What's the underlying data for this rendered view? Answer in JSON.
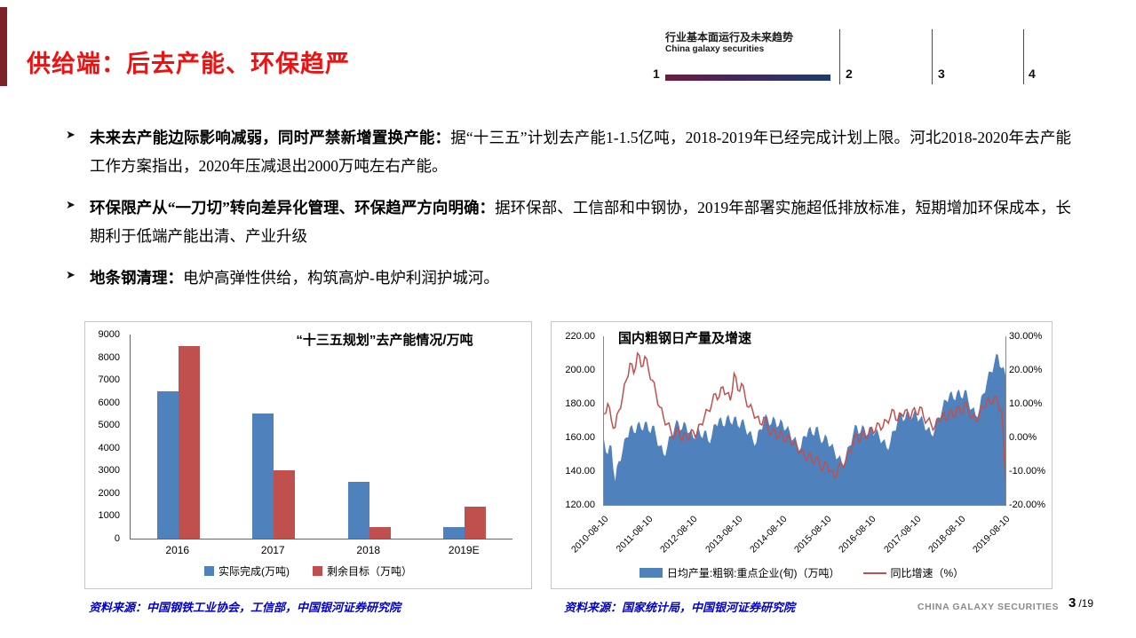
{
  "slide": {
    "title": "供给端：后去产能、环保趋严",
    "header": {
      "line1": "行业基本面运行及未来趋势",
      "line2": "China galaxy securities",
      "sections": [
        "1",
        "2",
        "3",
        "4"
      ]
    },
    "bullets": [
      {
        "lead": "未来去产能边际影响减弱，同时严禁新增置换产能：",
        "body": "据“十三五”计划去产能1-1.5亿吨，2018-2019年已经完成计划上限。河北2018-2020年去产能工作方案指出，2020年压减退出2000万吨左右产能。"
      },
      {
        "lead": "环保限产从“一刀切”转向差异化管理、环保趋严方向明确：",
        "body": "据环保部、工信部和中钢协，2019年部署实施超低排放标准，短期增加环保成本，长期利于低端产能出清、产业升级"
      },
      {
        "lead": "地条钢清理：",
        "body": "电炉高弹性供给，构筑高炉-电炉利润护城河。"
      }
    ],
    "sources": {
      "left": "资料来源：中国钢铁工业协会，工信部，中国银河证券研究院",
      "right": "资料来源：国家统计局，中国银河证券研究院"
    },
    "footer": {
      "brand": "CHINA GALAXY SECURITIES",
      "page": "3",
      "total": "/19"
    }
  },
  "chart_data": [
    {
      "type": "bar",
      "title": "“十三五规划”去产能情况/万吨",
      "categories": [
        "2016",
        "2017",
        "2018",
        "2019E"
      ],
      "series": [
        {
          "name": "实际完成(万吨)",
          "color": "#4F81BD",
          "values": [
            6500,
            5500,
            2500,
            500
          ]
        },
        {
          "name": "剩余目标（万吨）",
          "color": "#C0504D",
          "values": [
            8500,
            3000,
            500,
            1400
          ]
        }
      ],
      "ylim": [
        0,
        9000
      ],
      "y_ticks": [
        "9000",
        "8000",
        "7000",
        "6000",
        "5000",
        "4000",
        "3000",
        "2000",
        "1000",
        "0"
      ],
      "legend_position": "bottom",
      "grid": false
    },
    {
      "type": "area+line",
      "title": "国内粗钢日产量及增速",
      "x_ticks": [
        "2010-08-10",
        "2011-08-10",
        "2012-08-10",
        "2013-08-10",
        "2014-08-10",
        "2015-08-10",
        "2016-08-10",
        "2017-08-10",
        "2018-08-10",
        "2019-08-10"
      ],
      "x_tick_indices": [
        0,
        12,
        24,
        36,
        48,
        60,
        72,
        84,
        96,
        108
      ],
      "left_ylim": [
        120,
        220
      ],
      "right_ylim": [
        -20,
        30
      ],
      "left_ticks": [
        "220.00",
        "200.00",
        "180.00",
        "160.00",
        "140.00",
        "120.00"
      ],
      "right_ticks": [
        "30.00%",
        "20.00%",
        "10.00%",
        "0.00%",
        "-10.00%",
        "-20.00%"
      ],
      "legend_position": "bottom",
      "grid": false,
      "series": [
        {
          "name": "日均产量:粗钢:重点企业(旬)（万吨）",
          "type": "area",
          "axis": "left",
          "color": "#4F81BD",
          "values": [
            159,
            150,
            155,
            134,
            146,
            152,
            160,
            166,
            163,
            168,
            165,
            169,
            164,
            167,
            161,
            155,
            150,
            154,
            161,
            166,
            169,
            165,
            168,
            163,
            160,
            164,
            161,
            164,
            158,
            161,
            168,
            171,
            167,
            172,
            169,
            172,
            167,
            170,
            166,
            163,
            159,
            157,
            165,
            170,
            172,
            168,
            171,
            167,
            169,
            165,
            163,
            159,
            156,
            154,
            161,
            165,
            162,
            166,
            161,
            158,
            160,
            155,
            152,
            148,
            145,
            147,
            155,
            162,
            167,
            163,
            166,
            162,
            165,
            163,
            161,
            158,
            154,
            157,
            164,
            170,
            174,
            171,
            175,
            172,
            174,
            171,
            169,
            165,
            162,
            165,
            172,
            177,
            182,
            186,
            183,
            187,
            184,
            188,
            182,
            177,
            173,
            177,
            186,
            193,
            199,
            204,
            209,
            201,
            197
          ]
        },
        {
          "name": "同比增速（%）",
          "type": "line",
          "axis": "right",
          "color": "#C0504D",
          "values": [
            7,
            10,
            5,
            3,
            8,
            12,
            17,
            22,
            19,
            25,
            21,
            24,
            20,
            17,
            13,
            9,
            6,
            4,
            2,
            0,
            3,
            -1,
            1,
            0,
            2,
            1,
            4,
            6,
            8,
            10,
            13,
            12,
            15,
            13,
            11,
            19,
            14,
            16,
            12,
            9,
            8,
            6,
            4,
            6,
            3,
            1,
            2,
            0,
            1,
            -1,
            0,
            -2,
            -3,
            -4,
            -6,
            -5,
            -7,
            -6,
            -8,
            -9,
            -8,
            -10,
            -12,
            -9,
            -8,
            -7,
            -4,
            -2,
            1,
            -1,
            2,
            0,
            3,
            2,
            4,
            3,
            5,
            6,
            8,
            5,
            7,
            8,
            6,
            8,
            7,
            9,
            6,
            5,
            4,
            3,
            5,
            7,
            5,
            8,
            6,
            9,
            7,
            10,
            8,
            6,
            5,
            7,
            9,
            11,
            10,
            12,
            10,
            8,
            -13
          ]
        }
      ]
    }
  ]
}
